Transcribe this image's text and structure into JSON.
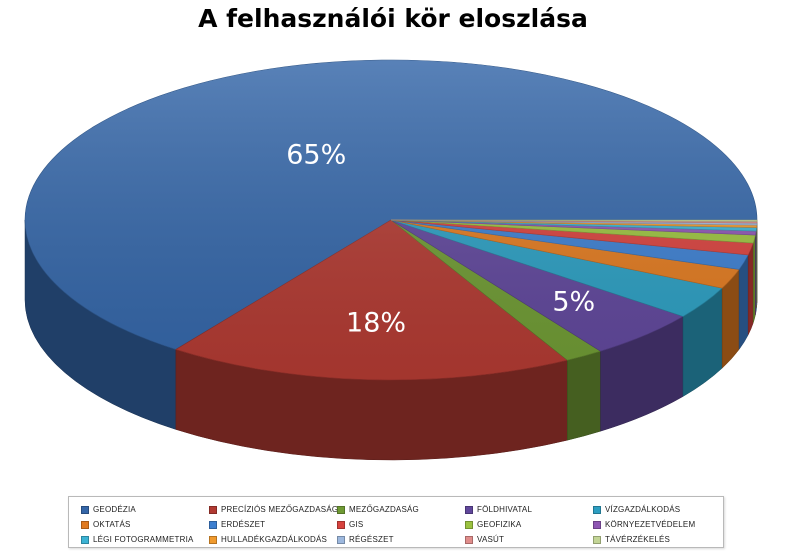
{
  "chart_data": {
    "type": "pie",
    "title": "A felhasználói kör eloszlása",
    "style": "3d",
    "legend_position": "bottom",
    "start_angle_deg": 0,
    "categories": [
      "GEODÉZIA",
      "PRECÍZIÓS MEZŐGAZDASÁG",
      "MEZŐGAZDASÁG",
      "FÖLDHIVATAL",
      "VÍZGAZDÁLKODÁS",
      "OKTATÁS",
      "ERDÉSZET",
      "GIS",
      "GEOFIZIKA",
      "KÖRNYEZETVÉDELEM",
      "LÉGI FOTOGRAMMETRIA",
      "HULLADÉKGAZDÁLKODÁS",
      "RÉGÉSZET",
      "VASÚT",
      "TÁVÉRZÉKELÉS"
    ],
    "values": [
      65,
      18,
      1.7,
      5,
      3.3,
      2,
      1.5,
      1.2,
      0.8,
      0.4,
      0.35,
      0.25,
      0.2,
      0.15,
      0.15
    ],
    "data_labels": [
      "65%",
      "18%",
      "",
      "5%",
      "",
      "",
      "",
      "",
      "",
      "",
      "",
      "",
      "",
      "",
      ""
    ],
    "colors": [
      "#3466a8",
      "#b13a32",
      "#6f9a34",
      "#60479b",
      "#2c9ec1",
      "#e07a20",
      "#3d7fd0",
      "#d7423e",
      "#9bc240",
      "#8e56b3",
      "#3cb3d4",
      "#f09a2e",
      "#9db8de",
      "#e08d8b",
      "#c3d596"
    ]
  }
}
